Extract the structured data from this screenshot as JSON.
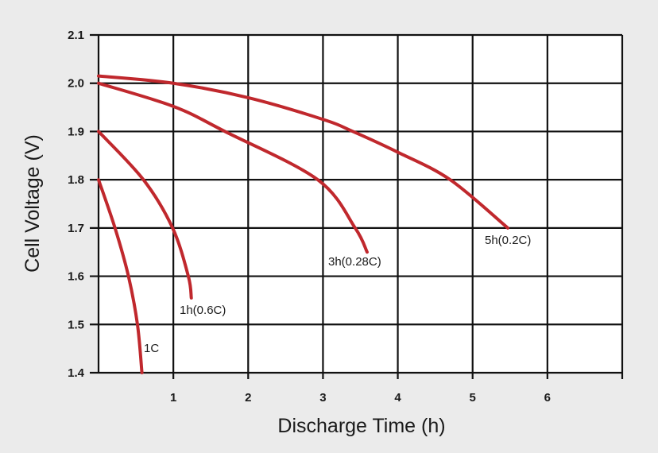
{
  "chart_data": {
    "type": "line",
    "title": "",
    "xlabel": "Discharge Time (h)",
    "ylabel": "Cell Voltage (V)",
    "xlim": [
      0,
      7
    ],
    "ylim": [
      1.4,
      2.1
    ],
    "xticks": [
      "1",
      "2",
      "3",
      "4",
      "5",
      "6"
    ],
    "yticks": [
      "1.4",
      "1.5",
      "1.6",
      "1.7",
      "1.8",
      "1.9",
      "2.0",
      "2.1"
    ],
    "grid": true,
    "line_color": "#c0282d",
    "series": [
      {
        "name": "1C",
        "x": [
          0,
          0.22,
          0.4,
          0.52,
          0.58
        ],
        "y": [
          1.8,
          1.7,
          1.6,
          1.5,
          1.4
        ]
      },
      {
        "name": "1h(0.6C)",
        "x": [
          0,
          0.6,
          0.99,
          1.2,
          1.24
        ],
        "y": [
          1.9,
          1.8,
          1.7,
          1.6,
          1.555
        ]
      },
      {
        "name": "3h(0.28C)",
        "x": [
          0,
          1.0,
          1.69,
          2.93,
          3.43,
          3.59
        ],
        "y": [
          2.0,
          1.952,
          1.9,
          1.8,
          1.7,
          1.65
        ]
      },
      {
        "name": "5h(0.2C)",
        "x": [
          0,
          1,
          2,
          3,
          3.4,
          4,
          4.7,
          5.47
        ],
        "y": [
          2.015,
          2.0,
          1.97,
          1.925,
          1.9,
          1.857,
          1.8,
          1.7
        ]
      }
    ]
  }
}
